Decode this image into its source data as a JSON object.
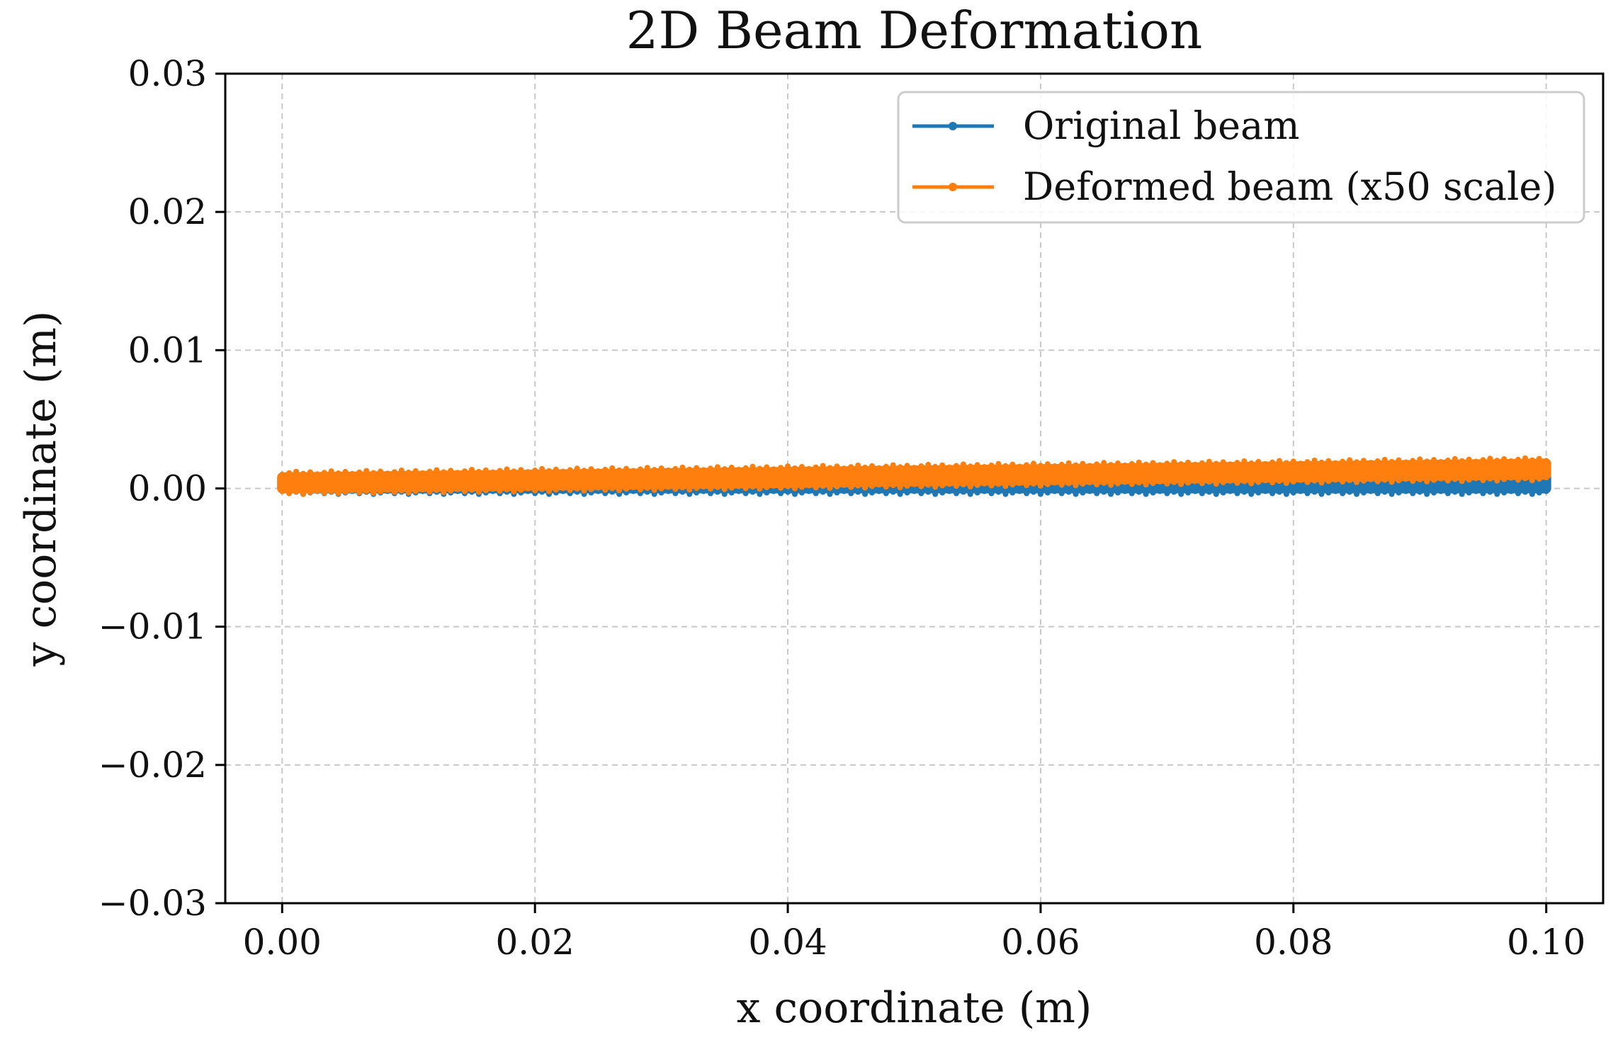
{
  "chart_data": {
    "type": "line",
    "title": "2D Beam Deformation",
    "xlabel": "x coordinate (m)",
    "ylabel": "y coordinate (m)",
    "xlim": [
      -0.0045,
      0.1045
    ],
    "ylim": [
      -0.03,
      0.03
    ],
    "x_ticks": [
      0.0,
      0.02,
      0.04,
      0.06,
      0.08,
      0.1
    ],
    "x_tick_labels": [
      "0.00",
      "0.02",
      "0.04",
      "0.06",
      "0.08",
      "0.10"
    ],
    "y_ticks": [
      0.03,
      0.02,
      0.01,
      0.0,
      -0.01,
      -0.02,
      -0.03
    ],
    "y_tick_labels": [
      "0.03",
      "0.02",
      "0.01",
      "0.00",
      "−0.01",
      "−0.02",
      "−0.03"
    ],
    "grid": true,
    "legend_position": "top-right",
    "series": [
      {
        "name": "Original beam",
        "color": "#1f77b4",
        "x": [
          0.0,
          0.01,
          0.02,
          0.03,
          0.04,
          0.05,
          0.06,
          0.07,
          0.08,
          0.09,
          0.1
        ],
        "y_bottom": [
          0.0,
          0.0,
          0.0,
          0.0,
          0.0,
          0.0,
          0.0,
          0.0,
          0.0,
          0.0,
          0.0
        ],
        "y_top": [
          0.0008,
          0.0008,
          0.0008,
          0.0008,
          0.0008,
          0.0008,
          0.0008,
          0.0008,
          0.0008,
          0.0008,
          0.0008
        ]
      },
      {
        "name": "Deformed beam (x50 scale)",
        "color": "#ff7f0e",
        "x": [
          0.0,
          0.01,
          0.02,
          0.03,
          0.04,
          0.05,
          0.06,
          0.07,
          0.08,
          0.09,
          0.1
        ],
        "y_bottom": [
          0.0,
          0.0001,
          0.0002,
          0.0003,
          0.0004,
          0.0005,
          0.0006,
          0.0007,
          0.0008,
          0.0009,
          0.001
        ],
        "y_top": [
          0.0008,
          0.0009,
          0.001,
          0.0011,
          0.0012,
          0.0013,
          0.0014,
          0.0015,
          0.0016,
          0.0017,
          0.0018
        ]
      }
    ]
  }
}
